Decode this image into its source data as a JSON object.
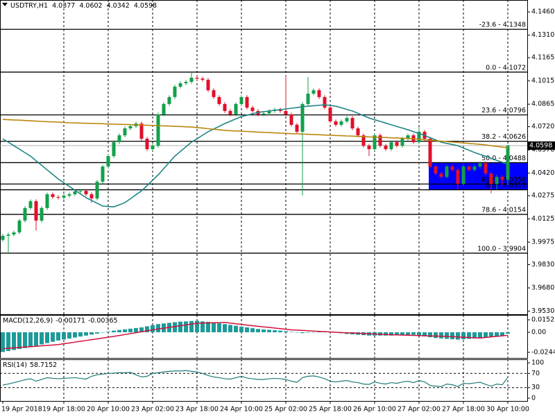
{
  "chart_data": [
    {
      "type": "candlestick",
      "title": "USDTRY,H1",
      "header_values": [
        4.0377,
        4.0602,
        4.0342,
        4.0598
      ],
      "categories": [
        "19 Apr 2018",
        null,
        null,
        null,
        null,
        null,
        null,
        null,
        null,
        null,
        null,
        "19 Apr 18:00",
        null,
        null,
        null,
        null,
        null,
        null,
        null,
        "20 Apr 10:00",
        null,
        null,
        null,
        null,
        null,
        null,
        null,
        "23 Apr 02:00",
        null,
        null,
        null,
        null,
        null,
        null,
        null,
        "23 Apr 18:00",
        null,
        null,
        null,
        null,
        null,
        null,
        null,
        "24 Apr 10:00",
        null,
        null,
        null,
        null,
        null,
        null,
        null,
        "25 Apr 02:00",
        null,
        null,
        null,
        null,
        null,
        null,
        null,
        "25 Apr 18:00",
        null,
        null,
        null,
        null,
        null,
        null,
        null,
        "26 Apr 10:00",
        null,
        null,
        null,
        null,
        null,
        null,
        null,
        "27 Apr 02:00",
        null,
        null,
        null,
        null,
        null,
        null,
        null,
        "27 Apr 18:00",
        null,
        null,
        null,
        null,
        null,
        null,
        null,
        "30 Apr 10:00"
      ],
      "open": [
        3.999,
        4.0016,
        4.0024,
        4.0038,
        4.0114,
        4.0195,
        4.0239,
        4.0114,
        4.0195,
        4.0284,
        4.0266,
        4.0262,
        4.0275,
        4.0284,
        4.0302,
        4.0306,
        4.0284,
        4.0257,
        4.0365,
        4.0463,
        4.053,
        4.062,
        4.0664,
        4.0709,
        4.0723,
        4.074,
        4.0642,
        4.0575,
        4.0597,
        4.0799,
        4.0866,
        4.0911,
        4.0978,
        4.1,
        4.1009,
        4.1036,
        4.103,
        4.1022,
        4.0955,
        4.0911,
        4.0866,
        4.0821,
        4.0799,
        4.0866,
        4.0911,
        4.0843,
        4.0821,
        4.0799,
        4.0805,
        4.0821,
        4.083,
        4.0821,
        4.0799,
        4.0732,
        4.0687,
        4.0866,
        4.0933,
        4.0955,
        4.0911,
        4.0843,
        4.0754,
        4.0732,
        4.0754,
        4.0776,
        4.0709,
        4.0664,
        4.0597,
        4.0575,
        4.0664,
        4.0597,
        4.0575,
        4.062,
        4.0597,
        4.0642,
        4.0664,
        4.062,
        4.0687,
        4.0642,
        4.0463,
        4.0418,
        4.0396,
        4.0463,
        4.0441,
        4.0351,
        4.0463,
        4.0441,
        4.0463,
        4.0485,
        4.0418,
        4.0351,
        4.0396,
        4.0377
      ],
      "high": [
        4.0028,
        4.0036,
        4.005,
        4.0126,
        4.0207,
        4.0251,
        4.0251,
        4.0207,
        4.0296,
        4.0296,
        4.0278,
        4.0287,
        4.0296,
        4.0314,
        4.0318,
        4.0318,
        4.0296,
        4.0377,
        4.0475,
        4.0542,
        4.0632,
        4.0676,
        4.0721,
        4.0735,
        4.0752,
        4.0752,
        4.0654,
        4.0609,
        4.0811,
        4.0878,
        4.0923,
        4.099,
        4.1012,
        4.1021,
        4.1072,
        4.1048,
        4.1042,
        4.1034,
        4.0967,
        4.0923,
        4.0878,
        4.0833,
        4.0878,
        4.0923,
        4.0923,
        4.0855,
        4.0833,
        4.0817,
        4.0833,
        4.0842,
        4.0842,
        4.105,
        4.0811,
        4.0744,
        4.0878,
        4.104,
        4.0967,
        4.0967,
        4.0923,
        4.0855,
        4.0766,
        4.0766,
        4.0788,
        4.0788,
        4.0721,
        4.0676,
        4.0609,
        4.0676,
        4.0676,
        4.0609,
        4.0632,
        4.0632,
        4.0654,
        4.0676,
        4.0676,
        4.072,
        4.0699,
        4.0654,
        4.0475,
        4.043,
        4.0475,
        4.0475,
        4.0453,
        4.0475,
        4.0475,
        4.0475,
        4.0497,
        4.0497,
        4.043,
        4.0408,
        4.0408,
        4.0602
      ],
      "low": [
        3.9978,
        3.9904,
        4.0012,
        4.0026,
        4.0102,
        4.0183,
        4.005,
        4.0102,
        4.0183,
        4.0254,
        4.025,
        4.025,
        4.0263,
        4.0272,
        4.029,
        4.0272,
        4.023,
        4.0245,
        4.0353,
        4.0451,
        4.0518,
        4.0608,
        4.0652,
        4.0697,
        4.0711,
        4.063,
        4.0563,
        4.0563,
        4.0585,
        4.0787,
        4.0854,
        4.0899,
        4.0966,
        4.0988,
        4.0997,
        4.1018,
        4.101,
        4.0943,
        4.0899,
        4.0854,
        4.0809,
        4.0787,
        4.0787,
        4.0854,
        4.0831,
        4.0809,
        4.0787,
        4.0787,
        4.0793,
        4.0809,
        4.0809,
        4.0787,
        4.072,
        4.0675,
        4.0276,
        4.0854,
        4.0921,
        4.0899,
        4.0831,
        4.0742,
        4.072,
        4.072,
        4.0742,
        4.0697,
        4.0652,
        4.0585,
        4.053,
        4.0563,
        4.0585,
        4.0563,
        4.0563,
        4.0585,
        4.0585,
        4.063,
        4.0608,
        4.0608,
        4.063,
        4.0451,
        4.0406,
        4.0384,
        4.0384,
        4.0429,
        4.0313,
        4.0339,
        4.0429,
        4.0429,
        4.0451,
        4.0406,
        4.029,
        4.0313,
        4.0342,
        4.0342
      ],
      "close": [
        4.0016,
        4.0024,
        4.0038,
        4.0114,
        4.0195,
        4.0239,
        4.0114,
        4.0195,
        4.0284,
        4.0266,
        4.0262,
        4.0275,
        4.0284,
        4.0302,
        4.0306,
        4.0284,
        4.0257,
        4.0365,
        4.0463,
        4.053,
        4.062,
        4.0664,
        4.0709,
        4.0723,
        4.074,
        4.0642,
        4.0575,
        4.0597,
        4.0799,
        4.0866,
        4.0911,
        4.0978,
        4.1,
        4.1009,
        4.1036,
        4.103,
        4.1022,
        4.0955,
        4.0911,
        4.0866,
        4.0821,
        4.0799,
        4.0866,
        4.0911,
        4.0843,
        4.0821,
        4.0799,
        4.0805,
        4.0821,
        4.083,
        4.0821,
        4.0799,
        4.0732,
        4.0687,
        4.0866,
        4.0933,
        4.0955,
        4.0911,
        4.0843,
        4.0754,
        4.0732,
        4.0754,
        4.0776,
        4.0709,
        4.0664,
        4.0597,
        4.0575,
        4.0664,
        4.0597,
        4.0575,
        4.062,
        4.0597,
        4.0642,
        4.0664,
        4.062,
        4.0687,
        4.0642,
        4.0463,
        4.0418,
        4.0396,
        4.0463,
        4.0441,
        4.0351,
        4.0463,
        4.0441,
        4.0463,
        4.0485,
        4.0418,
        4.0351,
        4.0396,
        4.0377,
        4.0598
      ],
      "up_color": "#13a04a",
      "down_color": "#e0102a",
      "moving_averages": [
        {
          "color": "#1f8585",
          "values": [
            4.0642,
            4.062,
            4.0597,
            4.0575,
            4.0552,
            4.053,
            4.05,
            4.0471,
            4.0441,
            4.0412,
            4.0382,
            4.0358,
            4.0334,
            4.031,
            4.0286,
            4.0262,
            4.0244,
            4.0226,
            4.0208,
            4.0205,
            4.0203,
            4.0216,
            4.023,
            4.0255,
            4.0281,
            4.0306,
            4.034,
            4.0375,
            4.0409,
            4.0449,
            4.049,
            4.053,
            4.056,
            4.059,
            4.062,
            4.0642,
            4.0665,
            4.0687,
            4.0705,
            4.0722,
            4.074,
            4.0755,
            4.077,
            4.0785,
            4.0794,
            4.0803,
            4.0812,
            4.0817,
            4.0821,
            4.0826,
            4.083,
            4.0834,
            4.0839,
            4.0843,
            4.0848,
            4.0852,
            4.0855,
            4.0858,
            4.0861,
            4.0857,
            4.0852,
            4.0842,
            4.0831,
            4.0821,
            4.0806,
            4.0791,
            4.0776,
            4.0765,
            4.0754,
            4.0743,
            4.0732,
            4.0721,
            4.0711,
            4.07,
            4.0688,
            4.0676,
            4.0664,
            4.0649,
            4.0635,
            4.062,
            4.0612,
            4.0605,
            4.0597,
            4.0582,
            4.0568,
            4.0553,
            4.0541,
            4.0529,
            4.0517,
            4.0503,
            4.049,
            4.0476
          ]
        },
        {
          "color": "#b8860b",
          "values": [
            4.0767,
            4.0765,
            4.0763,
            4.0762,
            4.076,
            4.0758,
            4.0756,
            4.0754,
            4.0752,
            4.0751,
            4.0749,
            4.0747,
            4.0745,
            4.0744,
            4.0743,
            4.0742,
            4.0741,
            4.074,
            4.0739,
            4.0737,
            4.0736,
            4.0735,
            4.0734,
            4.0733,
            4.0732,
            4.0731,
            4.0729,
            4.0728,
            4.0726,
            4.0725,
            4.0724,
            4.0722,
            4.0721,
            4.0719,
            4.0718,
            4.0714,
            4.0711,
            4.0707,
            4.0703,
            4.07,
            4.0696,
            4.0694,
            4.0692,
            4.0691,
            4.0689,
            4.0687,
            4.0685,
            4.0683,
            4.0682,
            4.068,
            4.0678,
            4.0677,
            4.0675,
            4.0674,
            4.0672,
            4.0671,
            4.0669,
            4.0668,
            4.0666,
            4.0665,
            4.0663,
            4.0662,
            4.066,
            4.0659,
            4.0657,
            4.0656,
            4.0654,
            4.0653,
            4.0651,
            4.065,
            4.0648,
            4.0647,
            4.0645,
            4.0644,
            4.0642,
            4.0639,
            4.0636,
            4.0633,
            4.063,
            4.0627,
            4.0624,
            4.0621,
            4.0618,
            4.0615,
            4.0612,
            4.0609,
            4.0606,
            4.0602,
            4.0597,
            4.0593,
            4.0588,
            4.0584
          ]
        }
      ],
      "fib_levels": [
        {
          "value": 4.1348,
          "label": "-23.6 - 4.1348"
        },
        {
          "value": 4.1072,
          "label": "0.0 - 4.1072"
        },
        {
          "value": 4.0796,
          "label": "23.6 - 4.0796"
        },
        {
          "value": 4.0626,
          "label": "38.2 - 4.0626"
        },
        {
          "value": 4.0488,
          "label": "50.0 - 4.0488"
        },
        {
          "value": 4.035,
          "label": "61.8 - 4.0350"
        },
        {
          "value": 4.0313,
          "label": "0.0 - 4.0313"
        },
        {
          "value": 4.0154,
          "label": "78.6 - 4.0154"
        },
        {
          "value": 3.9904,
          "label": "100.0 - 3.9904"
        }
      ],
      "zone": {
        "top": 4.0488,
        "bottom": 4.0313,
        "color": "#0000ff"
      },
      "last_price": 4.0598,
      "ylim": [
        3.951,
        4.1537
      ],
      "yticks": [
        {
          "value": 4.146,
          "label": "4.1460"
        },
        {
          "value": 4.131,
          "label": "4.1310"
        },
        4.1165,
        4.1015,
        4.0865,
        {
          "value": 4.072,
          "label": "4.0720"
        },
        {
          "value": 4.057,
          "label": "4.0570"
        },
        {
          "value": 4.042,
          "label": "4.0420"
        },
        4.0275,
        4.0125,
        3.9975,
        {
          "value": 3.983,
          "label": "3.9830"
        },
        {
          "value": 3.968,
          "label": "3.9680"
        },
        {
          "value": 3.953,
          "label": "3.9530"
        }
      ],
      "grid": true
    },
    {
      "type": "macd",
      "title": "MACD(12,26,9)",
      "header_values": [
        -0.00171,
        -0.00365
      ],
      "histogram": {
        "color": "#1e9a9a",
        "values": [
          -0.024,
          -0.0228,
          -0.0216,
          -0.0204,
          -0.0192,
          -0.018,
          -0.0164,
          -0.0148,
          -0.0132,
          -0.0116,
          -0.01,
          -0.0088,
          -0.0076,
          -0.0064,
          -0.0052,
          -0.004,
          -0.0028,
          -0.0016,
          -0.0004,
          0.0008,
          0.002,
          0.0028,
          0.0036,
          0.0044,
          0.0052,
          0.006,
          0.0073,
          0.0087,
          0.01,
          0.0108,
          0.0115,
          0.0123,
          0.013,
          0.0133,
          0.0137,
          0.014,
          0.0133,
          0.0127,
          0.012,
          0.011,
          0.01,
          0.009,
          0.008,
          0.007,
          0.006,
          0.005,
          0.004,
          0.0035,
          0.003,
          0.0025,
          0.002,
          0.0013,
          0.0005,
          -0.0003,
          -0.001,
          -0.0005,
          0.0,
          0.0005,
          0.001,
          0.0003,
          -0.0005,
          -0.0012,
          -0.002,
          -0.0025,
          -0.003,
          -0.0035,
          -0.004,
          -0.004,
          -0.004,
          -0.004,
          -0.004,
          -0.0038,
          -0.0035,
          -0.0033,
          -0.003,
          -0.004,
          -0.005,
          -0.006,
          -0.007,
          -0.0075,
          -0.008,
          -0.0085,
          -0.009,
          -0.0085,
          -0.008,
          -0.0075,
          -0.007,
          -0.0063,
          -0.0055,
          -0.0048,
          -0.004,
          -0.00171
        ]
      },
      "signal": {
        "color": "#d0103a",
        "values": [
          -0.02,
          -0.0195,
          -0.019,
          -0.0185,
          -0.018,
          -0.0175,
          -0.017,
          -0.0165,
          -0.016,
          -0.0155,
          -0.015,
          -0.014,
          -0.013,
          -0.012,
          -0.011,
          -0.01,
          -0.009,
          -0.008,
          -0.007,
          -0.006,
          -0.005,
          -0.0039,
          -0.0028,
          -0.0016,
          -0.0005,
          0.0006,
          0.0018,
          0.0029,
          0.004,
          0.005,
          0.006,
          0.007,
          0.008,
          0.009,
          0.01,
          0.011,
          0.0112,
          0.0114,
          0.0116,
          0.0118,
          0.012,
          0.0112,
          0.0104,
          0.0096,
          0.0088,
          0.008,
          0.0073,
          0.0066,
          0.0059,
          0.0052,
          0.0044,
          0.0037,
          0.003,
          0.0026,
          0.0023,
          0.0019,
          0.0015,
          0.0011,
          0.0008,
          0.0004,
          0.0,
          -0.0003,
          -0.0006,
          -0.0009,
          -0.0012,
          -0.0015,
          -0.0018,
          -0.0021,
          -0.0024,
          -0.0027,
          -0.003,
          -0.0032,
          -0.0034,
          -0.0036,
          -0.0038,
          -0.004,
          -0.0042,
          -0.0044,
          -0.0046,
          -0.0048,
          -0.005,
          -0.0053,
          -0.0057,
          -0.006,
          -0.0063,
          -0.0067,
          -0.007,
          -0.0063,
          -0.0056,
          -0.005,
          -0.0043,
          -0.00365
        ]
      },
      "ylim": [
        -0.0313,
        0.0203
      ],
      "yticks": [
        0.01522,
        {
          "value": 0,
          "label": "0.00"
        },
        -0.02442
      ]
    },
    {
      "type": "rsi",
      "title": "RSI(14)",
      "header_value": 58.7152,
      "color": "#1f7a7a",
      "values": [
        37,
        40,
        44,
        48,
        52,
        55,
        48,
        53,
        58,
        56,
        55,
        56,
        57,
        58,
        56,
        54,
        62,
        66,
        68,
        70,
        71,
        72,
        72,
        73,
        66,
        60,
        62,
        70,
        72,
        74,
        76,
        77,
        77,
        78,
        76,
        74,
        70,
        64,
        60,
        58,
        55,
        54,
        58,
        62,
        57,
        55,
        53,
        53,
        55,
        56,
        55,
        53,
        48,
        45,
        58,
        62,
        63,
        60,
        55,
        48,
        46,
        48,
        50,
        46,
        44,
        40,
        39,
        46,
        42,
        40,
        44,
        42,
        46,
        48,
        44,
        50,
        46,
        36,
        34,
        33,
        40,
        38,
        33,
        42,
        41,
        43,
        45,
        39,
        34,
        40,
        38,
        58.7152
      ],
      "ylim": [
        0,
        100
      ],
      "yticks": [
        100,
        70,
        30,
        0
      ]
    }
  ]
}
